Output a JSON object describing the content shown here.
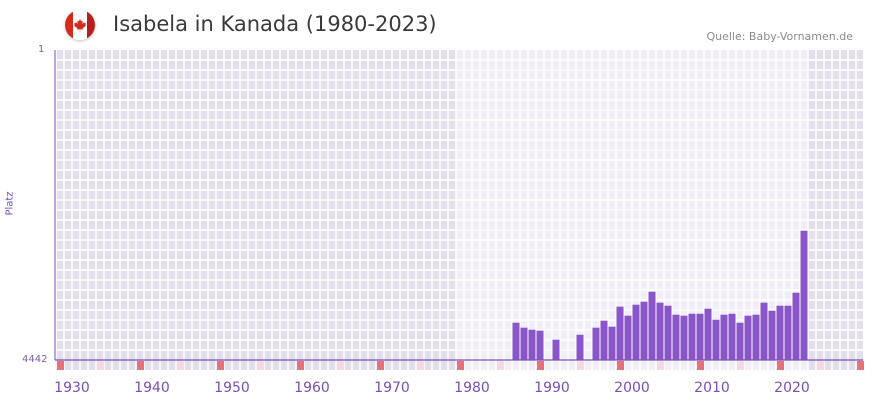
{
  "header": {
    "title": "Isabela in Kanada (1980-2023)",
    "source": "Quelle: Baby-Vornamen.de",
    "flag_icon": "canada-flag-icon"
  },
  "chart_data": {
    "type": "bar",
    "title": "Isabela in Kanada (1980-2023)",
    "xlabel": "",
    "ylabel": "Platz",
    "ylim": [
      4442,
      1
    ],
    "xlim": [
      1928,
      2029
    ],
    "y_ticks": [
      "1",
      "4442"
    ],
    "x_ticks": [
      "1930",
      "1940",
      "1950",
      "1960",
      "1970",
      "1980",
      "1990",
      "2000",
      "2010",
      "2020"
    ],
    "x": [
      1985,
      1986,
      1987,
      1988,
      1990,
      1993,
      1995,
      1996,
      1997,
      1998,
      1999,
      2000,
      2001,
      2002,
      2003,
      2004,
      2005,
      2006,
      2007,
      2008,
      2009,
      2010,
      2011,
      2012,
      2013,
      2014,
      2015,
      2016,
      2017,
      2018,
      2019,
      2020,
      2021
    ],
    "values": [
      3908,
      3979,
      4008,
      4022,
      4151,
      4080,
      3979,
      3879,
      3965,
      3678,
      3807,
      3650,
      3607,
      3464,
      3621,
      3664,
      3793,
      3807,
      3779,
      3779,
      3707,
      3865,
      3793,
      3779,
      3908,
      3807,
      3793,
      3621,
      3736,
      3664,
      3664,
      3478,
      2590
    ],
    "grid": true,
    "colors": {
      "bar": "#8a55c8",
      "bg_dark": "#e3dfed",
      "bg_light": "#f1eefa",
      "marker_strong": "#e8707a",
      "marker_light": "#f5d8e0"
    }
  }
}
